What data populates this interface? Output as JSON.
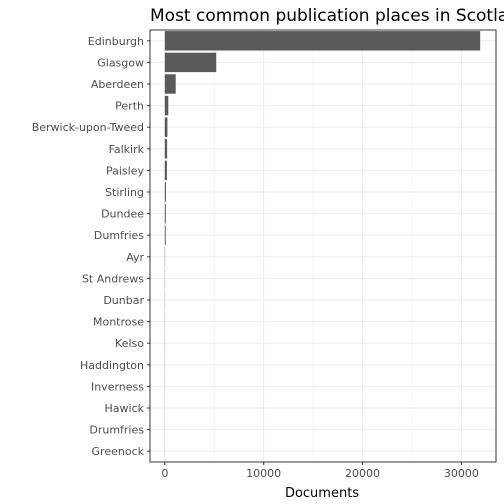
{
  "chart_data": {
    "type": "bar",
    "orientation": "horizontal",
    "title": "Most common publication places in Scotland",
    "xlabel": "Documents",
    "ylabel": "",
    "categories": [
      "Edinburgh",
      "Glasgow",
      "Aberdeen",
      "Perth",
      "Berwick-upon-Tweed",
      "Falkirk",
      "Paisley",
      "Stirling",
      "Dundee",
      "Dumfries",
      "Ayr",
      "St Andrews",
      "Dunbar",
      "Montrose",
      "Kelso",
      "Haddington",
      "Inverness",
      "Hawick",
      "Drumfries",
      "Greenock"
    ],
    "values": [
      31900,
      5200,
      1100,
      350,
      260,
      230,
      210,
      110,
      100,
      90,
      25,
      20,
      15,
      15,
      12,
      10,
      8,
      6,
      5,
      5
    ],
    "xlim": [
      -1500,
      33500
    ],
    "xticks": [
      0,
      10000,
      20000,
      30000
    ],
    "xtick_labels": [
      "0",
      "10000",
      "20000",
      "30000"
    ],
    "grid": true,
    "bar_color": "#595959",
    "panel_border_color": "#333333",
    "grid_color": "#ebebeb"
  }
}
